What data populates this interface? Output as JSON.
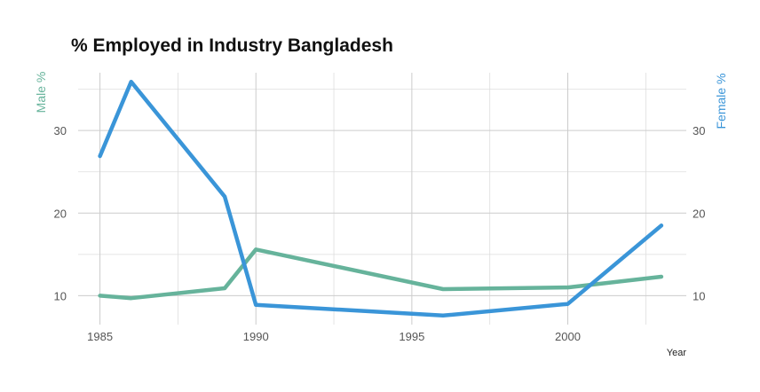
{
  "chart_data": {
    "type": "line",
    "title": "% Employed in Industry Bangladesh",
    "xlabel": "Year",
    "ylabel_left": "Male %",
    "ylabel_right": "Female %",
    "x_ticks": [
      1985,
      1990,
      1995,
      2000
    ],
    "y_ticks": [
      10,
      20,
      30
    ],
    "xlim": [
      1984.3,
      2003.8
    ],
    "ylim": [
      6.5,
      37
    ],
    "grid": true,
    "colors": {
      "male": "#66b39b",
      "female": "#3a95d8"
    },
    "series": [
      {
        "name": "Male %",
        "key": "male",
        "x": [
          1985,
          1986,
          1989,
          1990,
          1996,
          2000,
          2003
        ],
        "y": [
          10.0,
          9.7,
          10.9,
          15.6,
          10.8,
          11.0,
          12.3
        ]
      },
      {
        "name": "Female %",
        "key": "female",
        "x": [
          1985,
          1986,
          1989,
          1990,
          1996,
          2000,
          2003
        ],
        "y": [
          26.9,
          35.9,
          22.0,
          8.9,
          7.6,
          9.0,
          18.5
        ]
      }
    ]
  }
}
